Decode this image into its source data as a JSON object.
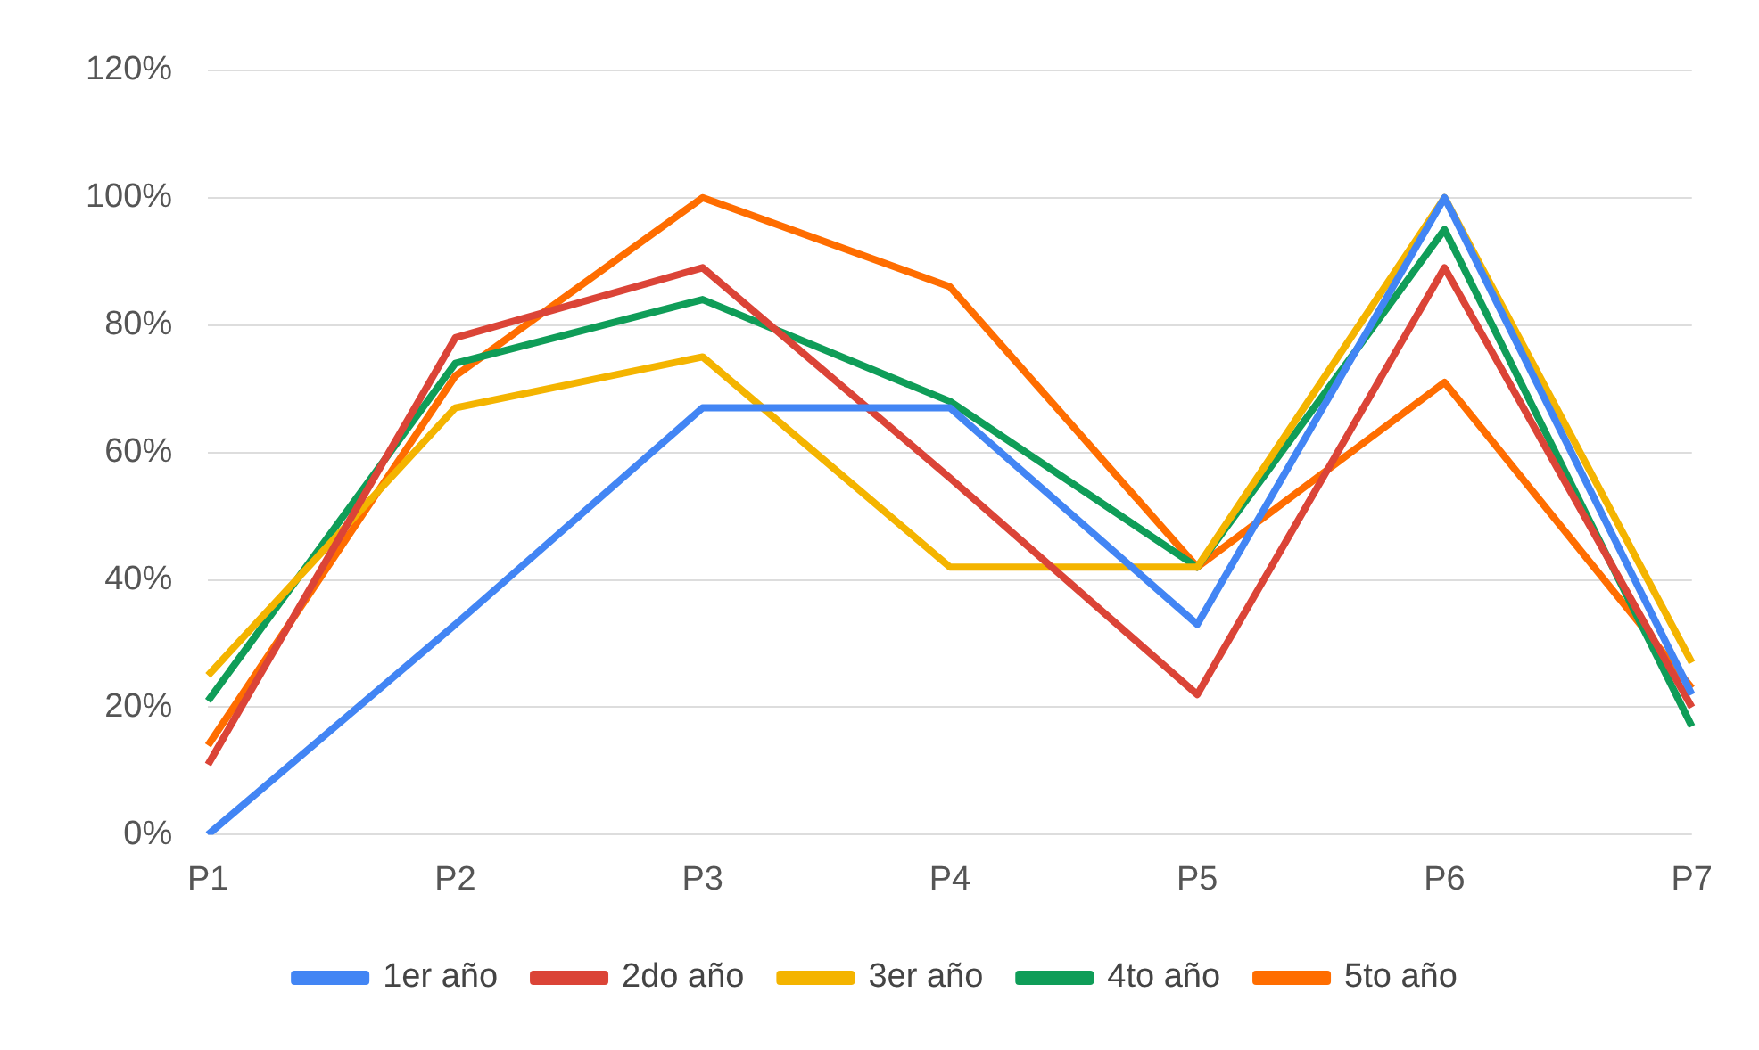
{
  "chart_data": {
    "type": "line",
    "categories": [
      "P1",
      "P2",
      "P3",
      "P4",
      "P5",
      "P6",
      "P7"
    ],
    "series": [
      {
        "name": "1er año",
        "color": "#4285f4",
        "values": [
          0,
          33,
          67,
          67,
          33,
          100,
          22
        ]
      },
      {
        "name": "2do año",
        "color": "#db4437",
        "values": [
          11,
          78,
          89,
          56,
          22,
          89,
          20
        ]
      },
      {
        "name": "3er año",
        "color": "#f4b400",
        "values": [
          25,
          67,
          75,
          42,
          42,
          100,
          27
        ]
      },
      {
        "name": "4to año",
        "color": "#0f9d58",
        "values": [
          21,
          74,
          84,
          68,
          42,
          95,
          17
        ]
      },
      {
        "name": "5to año",
        "color": "#ff6d00",
        "values": [
          14,
          72,
          100,
          86,
          42,
          71,
          23
        ]
      }
    ],
    "ylim": [
      0,
      120
    ],
    "yticks": [
      {
        "value": 0,
        "label": "0%"
      },
      {
        "value": 20,
        "label": "20%"
      },
      {
        "value": 40,
        "label": "40%"
      },
      {
        "value": 60,
        "label": "60%"
      },
      {
        "value": 80,
        "label": "80%"
      },
      {
        "value": 100,
        "label": "100%"
      },
      {
        "value": 120,
        "label": "120%"
      }
    ],
    "grid": "y",
    "legend": "bottom",
    "marker": "none",
    "line_style": "solid"
  }
}
